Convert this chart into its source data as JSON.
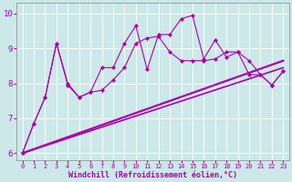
{
  "title": "",
  "xlabel": "Windchill (Refroidissement éolien,°C)",
  "bg_color": "#cce8e8",
  "line_color": "#aa00aa",
  "ylim": [
    5.8,
    10.3
  ],
  "yticks": [
    6,
    7,
    8,
    9,
    10
  ],
  "xticks": [
    0,
    1,
    2,
    3,
    4,
    5,
    6,
    7,
    8,
    9,
    10,
    11,
    12,
    13,
    14,
    15,
    16,
    17,
    18,
    19,
    20,
    21,
    22,
    23
  ],
  "jagged_y": [
    6.0,
    6.85,
    7.6,
    9.15,
    8.0,
    7.6,
    7.75,
    8.45,
    8.45,
    9.15,
    9.65,
    8.4,
    9.4,
    9.4,
    9.85,
    9.95,
    8.7,
    9.25,
    8.75,
    8.9,
    8.25,
    8.25,
    7.95,
    8.35
  ],
  "smooth_y": [
    6.0,
    6.85,
    7.6,
    9.15,
    7.95,
    7.6,
    7.75,
    7.8,
    8.1,
    8.45,
    9.15,
    9.3,
    9.35,
    8.9,
    8.65,
    8.65,
    8.65,
    8.7,
    8.9,
    8.9,
    8.65,
    8.25,
    7.95,
    8.35
  ],
  "trend1_start": 6.0,
  "trend1_end": 8.65,
  "trend2_start": 6.0,
  "trend2_end": 8.45,
  "figw": 3.2,
  "figh": 2.0,
  "dpi": 100
}
